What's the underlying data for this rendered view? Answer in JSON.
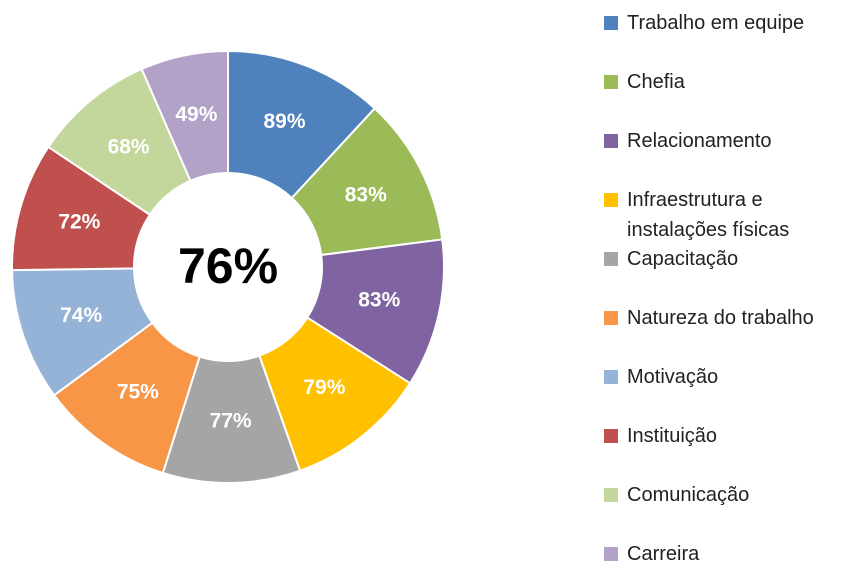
{
  "chart_data": {
    "type": "pie",
    "donut": true,
    "annotation": "76%",
    "categories": [
      "Trabalho em equipe",
      "Chefia",
      "Relacionamento",
      "Infraestrutura e instalações físicas",
      "Capacitação",
      "Natureza do trabalho",
      "Motivação",
      "Instituição",
      "Comunicação",
      "Carreira"
    ],
    "values": [
      89,
      83,
      83,
      79,
      77,
      75,
      74,
      72,
      68,
      49
    ],
    "value_labels": [
      "89%",
      "83%",
      "83%",
      "79%",
      "77%",
      "75%",
      "74%",
      "72%",
      "68%",
      "49%"
    ],
    "colors": [
      "#4f81bd",
      "#9bbb59",
      "#8064a2",
      "#ffc000",
      "#a5a5a5",
      "#f79646",
      "#95b3d7",
      "#c0504d",
      "#c3d69b",
      "#b3a2c7"
    ],
    "legend": "right"
  }
}
